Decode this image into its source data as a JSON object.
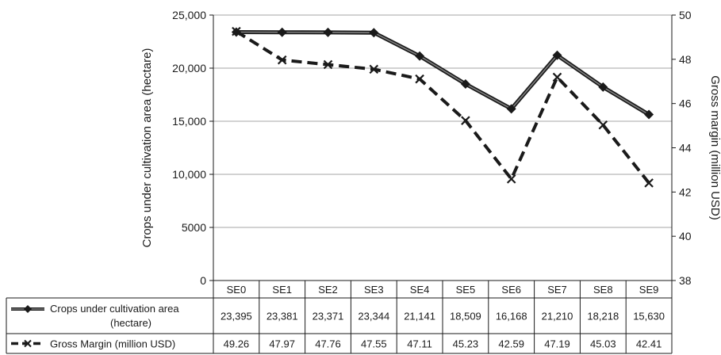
{
  "chart_data": {
    "type": "line",
    "categories": [
      "SE0",
      "SE1",
      "SE2",
      "SE3",
      "SE4",
      "SE5",
      "SE6",
      "SE7",
      "SE8",
      "SE9"
    ],
    "series": [
      {
        "name": "Crops under cultivation area (hectare)",
        "name_lines": [
          "Crops under cultivation area",
          "(hectare)"
        ],
        "axis": "left",
        "style": "solid-double",
        "marker": "diamond",
        "values": [
          23395,
          23381,
          23371,
          23344,
          21141,
          18509,
          16168,
          21210,
          18218,
          15630
        ],
        "labels": [
          "23,395",
          "23,381",
          "23,371",
          "23,344",
          "21,141",
          "18,509",
          "16,168",
          "21,210",
          "18,218",
          "15,630"
        ]
      },
      {
        "name": "Gross Margin (million USD)",
        "name_lines": [
          "Gross Margin (million USD)"
        ],
        "axis": "right",
        "style": "dashed",
        "marker": "x",
        "values": [
          49.26,
          47.97,
          47.76,
          47.55,
          47.11,
          45.23,
          42.59,
          47.19,
          45.03,
          42.41
        ],
        "labels": [
          "49.26",
          "47.97",
          "47.76",
          "47.55",
          "47.11",
          "45.23",
          "42.59",
          "47.19",
          "45.03",
          "42.41"
        ]
      }
    ],
    "ylabel": "Crops under cultivation area (hectare)",
    "y2label": "Gross margin (million USD)",
    "ylim": [
      0,
      25000
    ],
    "y_ticks": [
      0,
      5000,
      10000,
      15000,
      20000,
      25000
    ],
    "y_tick_labels": [
      "0",
      "5000",
      "10,000",
      "15,000",
      "20,000",
      "25,000"
    ],
    "y2lim": [
      38,
      50
    ],
    "y2_ticks": [
      38,
      40,
      42,
      44,
      46,
      48,
      50
    ],
    "y2_tick_labels": [
      "38",
      "40",
      "42",
      "44",
      "46",
      "48",
      "50"
    ],
    "grid": true,
    "legend": "data-table",
    "colors": {
      "line": "#1a1a1a",
      "grid": "#a6a6a6",
      "series1_inner": "#7f7f7f"
    }
  }
}
